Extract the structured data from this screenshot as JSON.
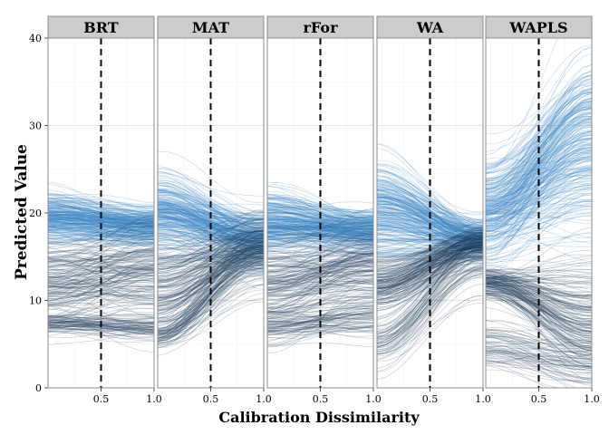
{
  "chart_data": {
    "type": "line",
    "facet_labels": [
      "BRT",
      "MAT",
      "rFor",
      "WA",
      "WAPLS"
    ],
    "xlabel": "Calibration Dissimilarity",
    "ylabel": "Predicted Value",
    "xlim": [
      0.0,
      1.0
    ],
    "ylim": [
      0,
      40
    ],
    "x_ticks": [
      "0.5",
      "1.0"
    ],
    "y_ticks": [
      "0",
      "10",
      "20",
      "30",
      "40"
    ],
    "reference_line_x": 0.5,
    "line_color": "#3a87c5",
    "dark_line_color": "#1b3a56",
    "reference_line_color": "#000000",
    "grid": true,
    "facets": [
      {
        "label": "BRT",
        "bands": [
          {
            "y_start": 19.5,
            "spread_start": 2.5,
            "y_end": 18.5,
            "spread_end": 2.0
          },
          {
            "y_start": 12.0,
            "spread_start": 5.0,
            "y_end": 13.0,
            "spread_end": 5.0
          },
          {
            "y_start": 7.5,
            "spread_start": 1.0,
            "y_end": 7.0,
            "spread_end": 1.0
          }
        ]
      },
      {
        "label": "MAT",
        "bands": [
          {
            "y_start": 20.0,
            "spread_start": 4.0,
            "y_end": 17.0,
            "spread_end": 3.0
          },
          {
            "y_start": 11.0,
            "spread_start": 5.0,
            "y_end": 16.0,
            "spread_end": 3.0
          },
          {
            "y_start": 6.0,
            "spread_start": 1.5,
            "y_end": 15.0,
            "spread_end": 4.0
          }
        ]
      },
      {
        "label": "rFor",
        "bands": [
          {
            "y_start": 19.0,
            "spread_start": 3.0,
            "y_end": 18.0,
            "spread_end": 2.0
          },
          {
            "y_start": 12.0,
            "spread_start": 5.0,
            "y_end": 14.0,
            "spread_end": 4.0
          },
          {
            "y_start": 7.0,
            "spread_start": 1.5,
            "y_end": 8.0,
            "spread_end": 2.0
          }
        ]
      },
      {
        "label": "WA",
        "bands": [
          {
            "y_start": 20.0,
            "spread_start": 5.0,
            "y_end": 17.0,
            "spread_end": 2.0
          },
          {
            "y_start": 12.0,
            "spread_start": 3.0,
            "y_end": 16.5,
            "spread_end": 2.0
          },
          {
            "y_start": 5.0,
            "spread_start": 2.5,
            "y_end": 15.0,
            "spread_end": 3.0
          }
        ]
      },
      {
        "label": "WAPLS",
        "bands": [
          {
            "y_start": 20.0,
            "spread_start": 5.0,
            "y_end": 28.0,
            "spread_end": 10.0
          },
          {
            "y_start": 12.0,
            "spread_start": 1.5,
            "y_end": 8.0,
            "spread_end": 6.0
          },
          {
            "y_start": 5.0,
            "spread_start": 3.0,
            "y_end": 3.0,
            "spread_end": 3.0
          }
        ]
      }
    ]
  }
}
